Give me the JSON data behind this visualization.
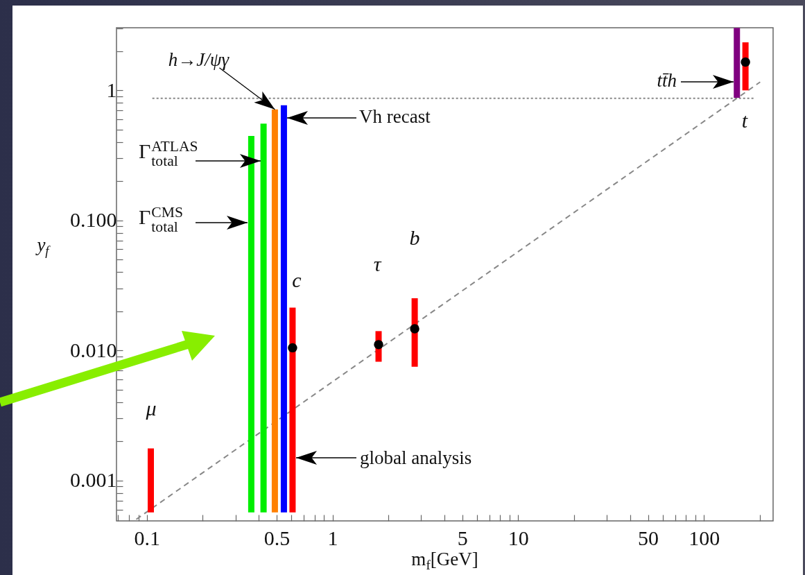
{
  "chart_data": {
    "type": "scatter",
    "xlabel": "m$_{f}$[GeV]",
    "ylabel": "y$_{f}$",
    "log": "xy",
    "xlim": [
      0.0686,
      236
    ],
    "ylim": [
      0.00049,
      3.03
    ],
    "xticks": [
      {
        "value": 0.07,
        "label": null
      },
      {
        "value": 0.08,
        "label": null
      },
      {
        "value": 0.09,
        "label": null
      },
      0.1,
      {
        "value": 0.2,
        "label": null
      },
      {
        "value": 0.3,
        "label": null
      },
      {
        "value": 0.4,
        "label": null
      },
      0.5,
      {
        "value": 0.6,
        "label": null
      },
      {
        "value": 0.7,
        "label": null
      },
      {
        "value": 0.8,
        "label": null
      },
      {
        "value": 0.9,
        "label": null
      },
      1,
      {
        "value": 2,
        "label": null
      },
      {
        "value": 3,
        "label": null
      },
      {
        "value": 4,
        "label": null
      },
      5,
      {
        "value": 6,
        "label": null
      },
      {
        "value": 7,
        "label": null
      },
      {
        "value": 8,
        "label": null
      },
      {
        "value": 9,
        "label": null
      },
      10,
      {
        "value": 20,
        "label": null
      },
      {
        "value": 30,
        "label": null
      },
      {
        "value": 40,
        "label": null
      },
      50,
      {
        "value": 60,
        "label": null
      },
      {
        "value": 70,
        "label": null
      },
      {
        "value": 80,
        "label": null
      },
      {
        "value": 90,
        "label": null
      },
      100,
      {
        "value": 200,
        "label": null
      }
    ],
    "yticks": [
      {
        "value": 0.0006,
        "label": null
      },
      {
        "value": 0.0007,
        "label": null
      },
      {
        "value": 0.0008,
        "label": null
      },
      {
        "value": 0.0009,
        "label": null
      },
      0.001,
      {
        "value": 0.002,
        "label": null
      },
      {
        "value": 0.003,
        "label": null
      },
      {
        "value": 0.004,
        "label": null
      },
      {
        "value": 0.005,
        "label": null
      },
      {
        "value": 0.006,
        "label": null
      },
      {
        "value": 0.007,
        "label": null
      },
      {
        "value": 0.008,
        "label": null
      },
      {
        "value": 0.009,
        "label": null
      },
      {
        "value": 0.01,
        "label": "0.010"
      },
      {
        "value": 0.02,
        "label": null
      },
      {
        "value": 0.03,
        "label": null
      },
      {
        "value": 0.04,
        "label": null
      },
      {
        "value": 0.05,
        "label": null
      },
      {
        "value": 0.06,
        "label": null
      },
      {
        "value": 0.07,
        "label": null
      },
      {
        "value": 0.08,
        "label": null
      },
      {
        "value": 0.09,
        "label": null
      },
      {
        "value": 0.1,
        "label": "0.100"
      },
      {
        "value": 0.2,
        "label": null
      },
      {
        "value": 0.3,
        "label": null
      },
      {
        "value": 0.4,
        "label": null
      },
      {
        "value": 0.5,
        "label": null
      },
      {
        "value": 0.6,
        "label": null
      },
      {
        "value": 0.7,
        "label": null
      },
      {
        "value": 0.8,
        "label": null
      },
      {
        "value": 0.9,
        "label": null
      },
      1,
      {
        "value": 2,
        "label": null
      },
      {
        "value": 3,
        "label": null
      }
    ],
    "series": [
      {
        "type": "bar",
        "x": [
          0.105,
          0.365,
          0.425,
          0.489,
          0.547,
          0.609,
          1.77,
          2.77,
          150.6,
          167.5
        ],
        "base": [
          0.00057,
          0.00057,
          0.00057,
          0.00057,
          0.00057,
          0.00057,
          0.0082,
          0.0075,
          0.877,
          1.0
        ],
        "values": [
          0.0012,
          0.446,
          0.555,
          0.713,
          0.768,
          0.0208,
          0.0059,
          0.0177,
          2.14,
          1.34
        ],
        "colors": [
          "#ff0000",
          "#00ee00",
          "#00ee00",
          "#ff8000",
          "#0000ff",
          "#ff0000",
          "#ff0000",
          "#ff0000",
          "#800080",
          "#ff0000"
        ]
      },
      {
        "x": [
          0.609,
          1.77,
          2.77,
          167.5
        ],
        "values": [
          0.0105,
          0.0111,
          0.0147,
          1.65
        ],
        "color": "#000000",
        "marker": "circle"
      },
      {
        "type": "line",
        "x": [
          0.0877,
          201
        ],
        "values": [
          0.000504,
          1.16
        ],
        "color": "#888888",
        "line_style": "dashed"
      },
      {
        "type": "line",
        "x": [
          0.107,
          186
        ],
        "values": [
          0.87,
          0.87
        ],
        "color": "#888888",
        "line_style": "dotted"
      }
    ],
    "annotations": [
      "μ",
      "c",
      "τ",
      "b",
      "t",
      {
        "text": "h→J/ψγ",
        "x": 0.489,
        "y": 0.714
      },
      "Γ$^{ATLAS}$$_{total}$",
      "Γ$^{CMS}$$_{total}$",
      "Vh recast",
      "tt̄h",
      "global analysis"
    ]
  }
}
